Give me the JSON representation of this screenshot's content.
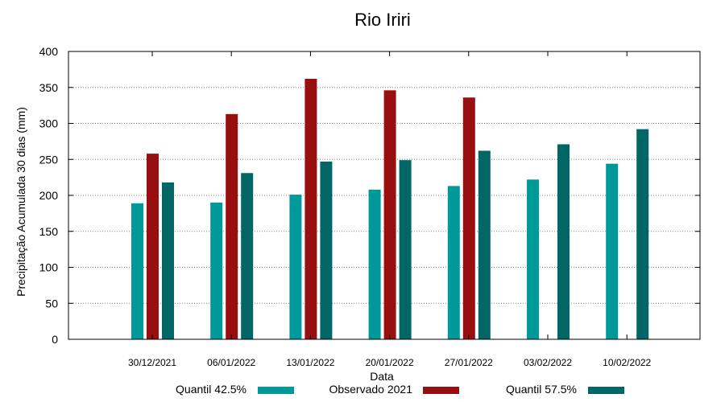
{
  "chart_data": {
    "type": "bar",
    "title": "Rio Iriri",
    "xlabel": "Data",
    "ylabel": "Precipitação Acumulada 30 dias (mm)",
    "ylim": [
      0,
      400
    ],
    "yticks": [
      0,
      50,
      100,
      150,
      200,
      250,
      300,
      350,
      400
    ],
    "grid": true,
    "legend_position": "bottom",
    "categories": [
      "30/12/2021",
      "06/01/2022",
      "13/01/2022",
      "20/01/2022",
      "27/01/2022",
      "03/02/2022",
      "10/02/2022"
    ],
    "series": [
      {
        "name": "Quantil 42.5%",
        "color": "#009999",
        "values": [
          189,
          190,
          201,
          208,
          213,
          222,
          244
        ]
      },
      {
        "name": "Observado 2021",
        "color": "#990f0f",
        "values": [
          258,
          313,
          362,
          346,
          336,
          null,
          null
        ]
      },
      {
        "name": "Quantil 57.5%",
        "color": "#006666",
        "values": [
          218,
          231,
          247,
          249,
          262,
          271,
          292
        ]
      }
    ]
  }
}
